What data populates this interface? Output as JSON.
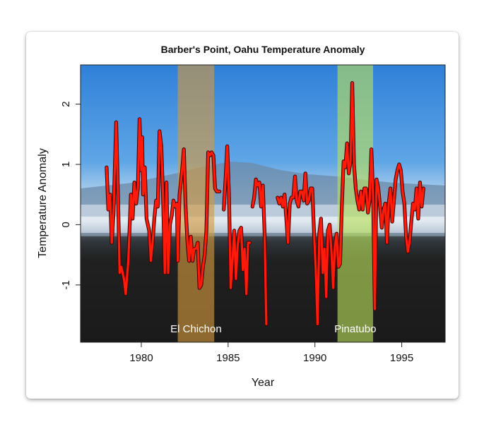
{
  "chart_data": {
    "type": "line",
    "title": "Barber's Point, Oahu Temperature Anomaly",
    "xlabel": "Year",
    "ylabel": "Temperature Anomaly",
    "xlim": [
      1976.5,
      1997.5
    ],
    "ylim": [
      -1.95,
      2.65
    ],
    "xticks": [
      1980,
      1985,
      1990,
      1995
    ],
    "yticks": [
      -1,
      0,
      1,
      2
    ],
    "grid": false,
    "legend": "none",
    "series": [
      {
        "color": "#ff1a0a",
        "segments": [
          [
            [
              1978.0,
              0.95
            ],
            [
              1978.1,
              0.25
            ],
            [
              1978.2,
              0.5
            ],
            [
              1978.3,
              -0.3
            ],
            [
              1978.4,
              0.2
            ],
            [
              1978.55,
              1.7
            ],
            [
              1978.65,
              0.6
            ],
            [
              1978.75,
              -0.8
            ],
            [
              1978.85,
              -0.7
            ],
            [
              1979.0,
              -0.9
            ],
            [
              1979.1,
              -1.15
            ],
            [
              1979.25,
              -0.6
            ],
            [
              1979.4,
              0.5
            ],
            [
              1979.5,
              0.1
            ],
            [
              1979.6,
              0.7
            ],
            [
              1979.7,
              0.35
            ],
            [
              1979.8,
              0.6
            ],
            [
              1979.9,
              1.75
            ],
            [
              1980.0,
              0.9
            ],
            [
              1980.05,
              1.45
            ],
            [
              1980.1,
              0.5
            ],
            [
              1980.2,
              0.95
            ],
            [
              1980.3,
              0.1
            ],
            [
              1980.45,
              -0.1
            ],
            [
              1980.55,
              -0.6
            ],
            [
              1980.65,
              -0.3
            ],
            [
              1980.75,
              0.1
            ],
            [
              1980.85,
              0.4
            ],
            [
              1980.95,
              0.3
            ],
            [
              1981.05,
              1.55
            ],
            [
              1981.15,
              1.3
            ],
            [
              1981.25,
              0.5
            ],
            [
              1981.35,
              -0.8
            ],
            [
              1981.45,
              0.7
            ],
            [
              1981.55,
              -0.8
            ],
            [
              1981.65,
              0.0
            ],
            [
              1981.75,
              0.15
            ],
            [
              1981.85,
              0.4
            ],
            [
              1981.95,
              0.3
            ],
            [
              1982.05,
              0.35
            ],
            [
              1982.1,
              -0.6
            ],
            [
              1982.2,
              0.5
            ],
            [
              1982.35,
              0.9
            ],
            [
              1982.45,
              1.25
            ],
            [
              1982.55,
              0.3
            ],
            [
              1982.65,
              -0.25
            ],
            [
              1982.75,
              -0.6
            ],
            [
              1982.85,
              -0.2
            ],
            [
              1982.95,
              -0.6
            ],
            [
              1983.05,
              -0.4
            ],
            [
              1983.15,
              -0.4
            ],
            [
              1983.25,
              -0.3
            ],
            [
              1983.35,
              -1.05
            ],
            [
              1983.45,
              -1.0
            ],
            [
              1983.55,
              -0.7
            ],
            [
              1983.65,
              -0.5
            ],
            [
              1983.75,
              -0.1
            ],
            [
              1983.85,
              1.2
            ],
            [
              1983.95,
              1.15
            ],
            [
              1984.05,
              1.2
            ],
            [
              1984.15,
              1.15
            ],
            [
              1984.25,
              0.6
            ],
            [
              1984.35,
              0.55
            ],
            [
              1984.5,
              0.55
            ]
          ],
          [
            [
              1984.75,
              0.25
            ],
            [
              1984.85,
              0.75
            ],
            [
              1984.95,
              1.3
            ],
            [
              1985.05,
              0.5
            ],
            [
              1985.15,
              -1.05
            ],
            [
              1985.25,
              -0.6
            ],
            [
              1985.35,
              -0.1
            ],
            [
              1985.45,
              -0.9
            ],
            [
              1985.55,
              -0.35
            ],
            [
              1985.65,
              -0.1
            ],
            [
              1985.75,
              -0.05
            ],
            [
              1985.85,
              -0.75
            ],
            [
              1985.95,
              -0.4
            ],
            [
              1986.05,
              -1.15
            ],
            [
              1986.15,
              -0.3
            ],
            [
              1986.25,
              -0.3
            ]
          ],
          [
            [
              1986.4,
              0.3
            ],
            [
              1986.5,
              0.45
            ],
            [
              1986.6,
              0.75
            ],
            [
              1986.7,
              0.65
            ],
            [
              1986.8,
              0.7
            ],
            [
              1986.9,
              0.3
            ],
            [
              1987.0,
              0.65
            ],
            [
              1987.1,
              -0.15
            ],
            [
              1987.2,
              -1.65
            ]
          ],
          [
            [
              1987.85,
              0.45
            ],
            [
              1987.95,
              0.35
            ],
            [
              1988.05,
              0.45
            ],
            [
              1988.15,
              0.3
            ],
            [
              1988.25,
              0.5
            ],
            [
              1988.35,
              0.1
            ],
            [
              1988.45,
              -0.3
            ],
            [
              1988.55,
              0.35
            ],
            [
              1988.65,
              0.45
            ],
            [
              1988.75,
              0.45
            ],
            [
              1988.85,
              0.8
            ],
            [
              1988.95,
              0.4
            ],
            [
              1989.05,
              0.3
            ],
            [
              1989.15,
              0.55
            ],
            [
              1989.25,
              0.55
            ],
            [
              1989.35,
              0.4
            ],
            [
              1989.45,
              0.85
            ],
            [
              1989.55,
              0.35
            ],
            [
              1989.65,
              0.4
            ],
            [
              1989.75,
              0.6
            ],
            [
              1989.85,
              0.6
            ],
            [
              1989.95,
              -0.15
            ],
            [
              1990.05,
              -0.75
            ],
            [
              1990.15,
              -1.65
            ],
            [
              1990.25,
              -0.15
            ],
            [
              1990.35,
              0.1
            ],
            [
              1990.45,
              -0.8
            ],
            [
              1990.55,
              -0.4
            ],
            [
              1990.65,
              -1.2
            ],
            [
              1990.75,
              -0.1
            ],
            [
              1990.85,
              0.0
            ],
            [
              1990.95,
              -0.45
            ],
            [
              1991.05,
              -1.05
            ],
            [
              1991.15,
              -0.35
            ],
            [
              1991.25,
              -0.15
            ],
            [
              1991.35,
              -0.7
            ],
            [
              1991.45,
              -0.65
            ],
            [
              1991.55,
              0.3
            ],
            [
              1991.65,
              1.05
            ],
            [
              1991.75,
              0.95
            ],
            [
              1991.85,
              1.35
            ],
            [
              1991.95,
              0.85
            ],
            [
              1992.05,
              1.05
            ],
            [
              1992.15,
              2.35
            ],
            [
              1992.25,
              1.0
            ],
            [
              1992.35,
              0.6
            ],
            [
              1992.45,
              0.4
            ],
            [
              1992.55,
              0.25
            ],
            [
              1992.65,
              0.55
            ],
            [
              1992.75,
              0.25
            ],
            [
              1992.85,
              0.6
            ],
            [
              1992.95,
              0.6
            ],
            [
              1993.05,
              0.2
            ],
            [
              1993.15,
              0.4
            ],
            [
              1993.25,
              1.25
            ],
            [
              1993.35,
              0.5
            ],
            [
              1993.45,
              -1.4
            ],
            [
              1993.55,
              0.75
            ],
            [
              1993.65,
              0.6
            ],
            [
              1993.75,
              0.3
            ],
            [
              1993.85,
              -0.05
            ],
            [
              1993.95,
              0.25
            ],
            [
              1994.05,
              0.35
            ],
            [
              1994.15,
              -0.3
            ],
            [
              1994.25,
              0.35
            ],
            [
              1994.35,
              0.6
            ],
            [
              1994.45,
              0.05
            ],
            [
              1994.55,
              0.4
            ],
            [
              1994.65,
              0.75
            ],
            [
              1994.75,
              0.9
            ],
            [
              1994.85,
              1.0
            ],
            [
              1994.95,
              0.9
            ],
            [
              1995.05,
              0.55
            ],
            [
              1995.15,
              0.35
            ],
            [
              1995.25,
              -0.2
            ],
            [
              1995.35,
              -0.45
            ],
            [
              1995.45,
              -0.3
            ],
            [
              1995.55,
              0.05
            ],
            [
              1995.65,
              0.35
            ],
            [
              1995.75,
              0.25
            ],
            [
              1995.85,
              0.6
            ],
            [
              1995.95,
              0.1
            ],
            [
              1996.05,
              0.7
            ],
            [
              1996.15,
              0.3
            ],
            [
              1996.25,
              0.6
            ]
          ]
        ]
      }
    ],
    "annotations": [
      {
        "label": "El Chichon",
        "x_start": 1982.1,
        "x_end": 1984.2,
        "color": "#d59a3e"
      },
      {
        "label": "Pinatubo",
        "x_start": 1991.3,
        "x_end": 1993.35,
        "color": "#b9e05a"
      }
    ]
  }
}
